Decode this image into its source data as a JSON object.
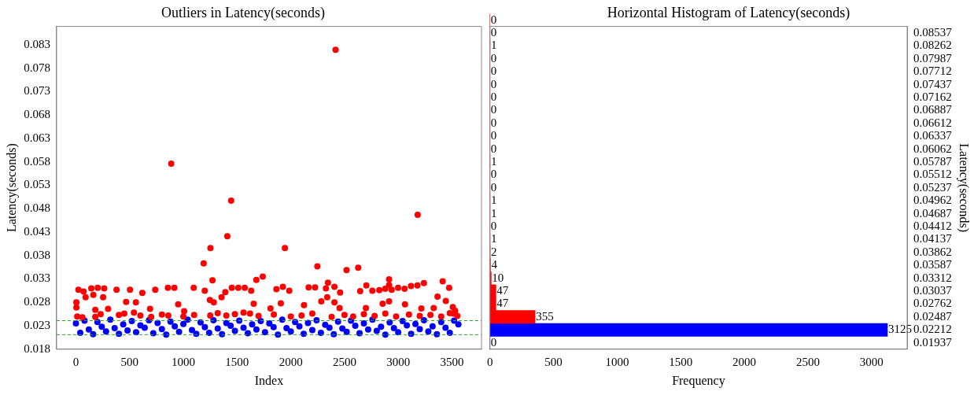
{
  "chart_data": [
    {
      "type": "scatter",
      "title": "Outliers in Latency(seconds)",
      "xlabel": "Index",
      "ylabel": "Latency(seconds)",
      "xlim": [
        -180,
        3775
      ],
      "xticks": [
        0,
        500,
        1000,
        1500,
        2000,
        2500,
        3000,
        3500
      ],
      "ylim": [
        0.018,
        0.0869
      ],
      "yticks": [
        0.018,
        0.023,
        0.028,
        0.033,
        0.038,
        0.043,
        0.048,
        0.053,
        0.058,
        0.063,
        0.068,
        0.073,
        0.078,
        0.083
      ],
      "grid": false,
      "legend": false,
      "marker": "circle",
      "series": [
        {
          "color": "#ff0000",
          "x": [
            4,
            4,
            12,
            23,
            60,
            71,
            90,
            143,
            162,
            180,
            180,
            203,
            230,
            253,
            263,
            299,
            378,
            400,
            450,
            467,
            503,
            540,
            558,
            600,
            618,
            690,
            700,
            738,
            800,
            856,
            860,
            887,
            916,
            952,
            1000,
            1007,
            1096,
            1100,
            1189,
            1199,
            1247,
            1250,
            1252,
            1271,
            1283,
            1320,
            1355,
            1391,
            1400,
            1409,
            1445,
            1451,
            1480,
            1511,
            1560,
            1571,
            1620,
            1631,
            1655,
            1679,
            1700,
            1739,
            1811,
            1842,
            1866,
            1907,
            1926,
            1945,
            1986,
            2000,
            2100,
            2123,
            2166,
            2200,
            2226,
            2247,
            2284,
            2327,
            2339,
            2346,
            2380,
            2406,
            2406,
            2417,
            2454,
            2459,
            2500,
            2519,
            2580,
            2627,
            2646,
            2680,
            2699,
            2703,
            2759,
            2780,
            2824,
            2855,
            2879,
            2880,
            2915,
            2915,
            2915,
            2939,
            2980,
            2999,
            3059,
            3063,
            3100,
            3119,
            3179,
            3181,
            3200,
            3215,
            3239,
            3300,
            3330,
            3366,
            3400,
            3414,
            3443,
            3474,
            3480,
            3508,
            3515,
            3530,
            3550
          ],
          "values": [
            0.028,
            0.0269,
            0.025,
            0.0307,
            0.0248,
            0.0303,
            0.0291,
            0.031,
            0.0296,
            0.0264,
            0.0249,
            0.0311,
            0.0255,
            0.0291,
            0.031,
            0.0266,
            0.0307,
            0.0253,
            0.0256,
            0.0281,
            0.0307,
            0.0258,
            0.028,
            0.0252,
            0.03,
            0.0266,
            0.0249,
            0.0307,
            0.0254,
            0.0311,
            0.0252,
            0.0576,
            0.0311,
            0.0276,
            0.025,
            0.0261,
            0.0311,
            0.0253,
            0.0363,
            0.0305,
            0.0285,
            0.0252,
            0.0396,
            0.0327,
            0.028,
            0.0257,
            0.0291,
            0.0302,
            0.0252,
            0.0421,
            0.0497,
            0.0311,
            0.0255,
            0.0311,
            0.0258,
            0.0311,
            0.0256,
            0.0305,
            0.0277,
            0.0328,
            0.0251,
            0.0335,
            0.0267,
            0.0254,
            0.0308,
            0.0278,
            0.0313,
            0.0396,
            0.0305,
            0.025,
            0.0252,
            0.0274,
            0.0312,
            0.0256,
            0.0312,
            0.0357,
            0.0282,
            0.031,
            0.0291,
            0.0322,
            0.0249,
            0.0313,
            0.028,
            0.0819,
            0.0268,
            0.0301,
            0.0253,
            0.0349,
            0.025,
            0.0354,
            0.0304,
            0.0255,
            0.0268,
            0.0316,
            0.0305,
            0.0251,
            0.0306,
            0.0277,
            0.0309,
            0.0256,
            0.0329,
            0.0317,
            0.0282,
            0.0307,
            0.025,
            0.0311,
            0.0309,
            0.0276,
            0.0254,
            0.0315,
            0.0316,
            0.0467,
            0.0251,
            0.0267,
            0.0321,
            0.0253,
            0.0268,
            0.0292,
            0.025,
            0.0325,
            0.0283,
            0.0311,
            0.0257,
            0.027,
            0.0256,
            0.0262,
            0.0251
          ]
        },
        {
          "color": "#0000ff",
          "x": [
            0,
            40,
            80,
            120,
            160,
            200,
            240,
            280,
            320,
            360,
            400,
            440,
            480,
            520,
            560,
            600,
            640,
            680,
            720,
            760,
            800,
            840,
            880,
            920,
            960,
            1000,
            1040,
            1080,
            1120,
            1160,
            1200,
            1240,
            1280,
            1320,
            1360,
            1400,
            1440,
            1480,
            1520,
            1560,
            1600,
            1640,
            1680,
            1720,
            1760,
            1800,
            1840,
            1880,
            1920,
            1960,
            2000,
            2040,
            2080,
            2120,
            2160,
            2200,
            2240,
            2280,
            2320,
            2360,
            2400,
            2440,
            2480,
            2520,
            2560,
            2600,
            2640,
            2680,
            2720,
            2760,
            2800,
            2840,
            2880,
            2920,
            2960,
            3000,
            3040,
            3080,
            3120,
            3160,
            3200,
            3240,
            3280,
            3320,
            3360,
            3400,
            3440,
            3480,
            3520,
            3560
          ],
          "values": [
            0.0235,
            0.0215,
            0.0241,
            0.0222,
            0.0212,
            0.0238,
            0.0228,
            0.0218,
            0.0243,
            0.0225,
            0.0213,
            0.0233,
            0.022,
            0.024,
            0.0216,
            0.0231,
            0.0226,
            0.0242,
            0.0214,
            0.0236,
            0.0223,
            0.0211,
            0.0239,
            0.0229,
            0.0217,
            0.0234,
            0.0243,
            0.0221,
            0.0213,
            0.0237,
            0.0227,
            0.0215,
            0.0242,
            0.0224,
            0.0212,
            0.0236,
            0.023,
            0.0219,
            0.0241,
            0.0226,
            0.0214,
            0.0233,
            0.0222,
            0.024,
            0.0216,
            0.0235,
            0.0227,
            0.0211,
            0.0243,
            0.0225,
            0.0218,
            0.0238,
            0.0229,
            0.0213,
            0.0236,
            0.0221,
            0.0242,
            0.0215,
            0.0232,
            0.0226,
            0.0212,
            0.0239,
            0.0224,
            0.0217,
            0.0241,
            0.023,
            0.0214,
            0.0235,
            0.0222,
            0.0243,
            0.0219,
            0.0228,
            0.0211,
            0.0237,
            0.0225,
            0.0216,
            0.024,
            0.0231,
            0.0213,
            0.0234,
            0.0223,
            0.0242,
            0.0218,
            0.0229,
            0.0212,
            0.0238,
            0.0226,
            0.0215,
            0.0241,
            0.0233
          ]
        }
      ],
      "ref_lines": [
        {
          "axis": "y",
          "value": 0.0241,
          "color": "#2ca02c",
          "line_style": "dashed"
        },
        {
          "axis": "y",
          "value": 0.0211,
          "color": "#2ca02c",
          "line_style": "dashed"
        }
      ]
    },
    {
      "type": "histogram",
      "orientation": "horizontal",
      "title": "Horizontal Histogram of Latency(seconds)",
      "xlabel": "Frequency",
      "ylabel": "Latency(seconds)",
      "bins": [
        0.017995,
        0.020745,
        0.023495,
        0.026245,
        0.028995,
        0.031745,
        0.034495,
        0.037245,
        0.039995,
        0.042745,
        0.045495,
        0.048245,
        0.050995,
        0.053745,
        0.056495,
        0.059245,
        0.061995,
        0.064745,
        0.067495,
        0.070245,
        0.072995,
        0.075745,
        0.078495,
        0.081245,
        0.083995,
        0.086745,
        0.089495
      ],
      "values": [
        0,
        3125,
        355,
        47,
        47,
        10,
        4,
        2,
        1,
        0,
        1,
        1,
        0,
        0,
        1,
        0,
        0,
        0,
        0,
        0,
        0,
        0,
        0,
        1,
        0,
        0
      ],
      "colors": [
        "#0000ff",
        "#0000ff",
        "#ff0000",
        "#ff0000",
        "#ff0000",
        "#ff0000",
        "#ff0000",
        "#ff0000",
        "#ff0000",
        "#ff0000",
        "#ff0000",
        "#ff0000",
        "#ff0000",
        "#ff0000",
        "#ff0000",
        "#ff0000",
        "#ff0000",
        "#ff0000",
        "#ff0000",
        "#ff0000",
        "#ff0000",
        "#ff0000",
        "#ff0000",
        "#ff0000",
        "#ff0000",
        "#ff0000"
      ],
      "xlim": [
        0,
        3280
      ],
      "xticks": [
        0,
        500,
        1000,
        1500,
        2000,
        2500,
        3000
      ],
      "ylim": [
        0.018,
        0.0868
      ],
      "yticks": [
        0.01937,
        0.02212,
        0.02487,
        0.02762,
        0.03037,
        0.03312,
        0.03587,
        0.03862,
        0.04137,
        0.04412,
        0.04687,
        0.04962,
        0.05237,
        0.05512,
        0.05787,
        0.06062,
        0.06337,
        0.06612,
        0.06887,
        0.07162,
        0.07437,
        0.07712,
        0.07987,
        0.08262,
        0.08537
      ],
      "data_labels": true,
      "grid": false,
      "legend": false
    }
  ]
}
